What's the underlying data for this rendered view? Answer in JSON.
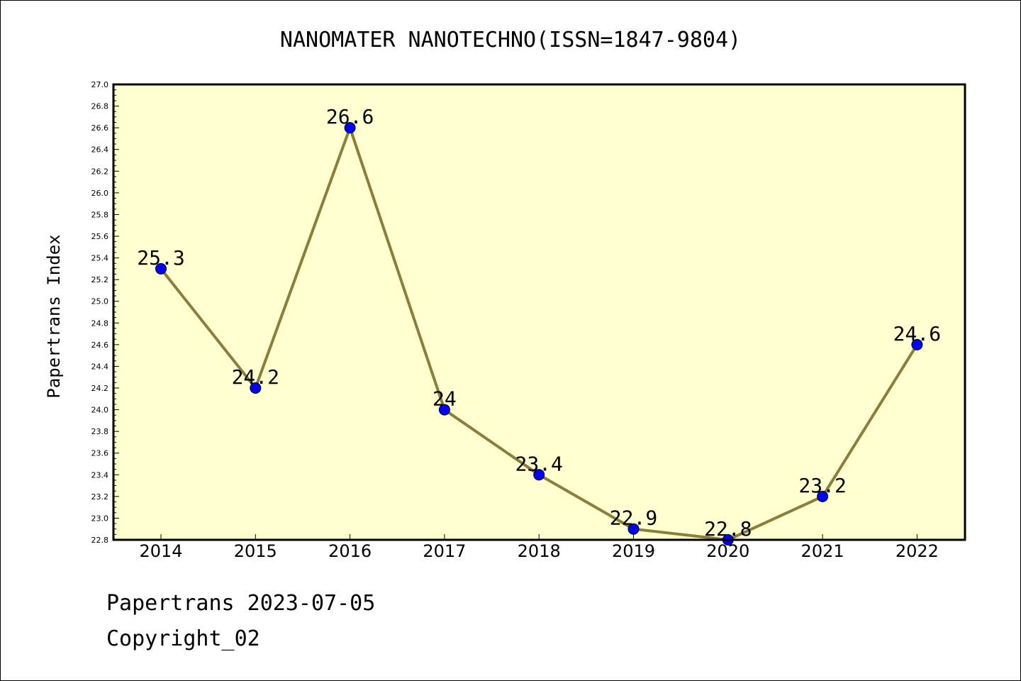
{
  "chart_data": {
    "type": "line",
    "title": "NANOMATER NANOTECHNO(ISSN=1847-9804)",
    "xlabel": "",
    "ylabel": "Papertrans Index",
    "categories": [
      "2014",
      "2015",
      "2016",
      "2017",
      "2018",
      "2019",
      "2020",
      "2021",
      "2022"
    ],
    "series": [
      {
        "values": [
          25.3,
          24.2,
          26.6,
          24.0,
          23.4,
          22.9,
          22.8,
          23.2,
          24.6
        ],
        "data_labels": [
          "25.3",
          "24.2",
          "26.6",
          "24",
          "23.4",
          "22.9",
          "22.8",
          "23.2",
          "24.6"
        ]
      }
    ],
    "ylim": [
      22.8,
      27.0
    ],
    "yticks": [
      "22.8",
      "23.0",
      "23.2",
      "23.4",
      "23.6",
      "23.8",
      "24.0",
      "24.2",
      "24.4",
      "24.6",
      "24.8",
      "25.0",
      "25.2",
      "25.4",
      "25.6",
      "25.8",
      "26.0",
      "26.2",
      "26.4",
      "26.6",
      "26.8",
      "27.0"
    ],
    "grid": false,
    "colors": {
      "plot_background": "#ffffd0",
      "line": "#8b7d3a",
      "marker": "#0000ff"
    }
  },
  "footer": {
    "line1": "Papertrans 2023-07-05",
    "line2": "Copyright_02"
  }
}
